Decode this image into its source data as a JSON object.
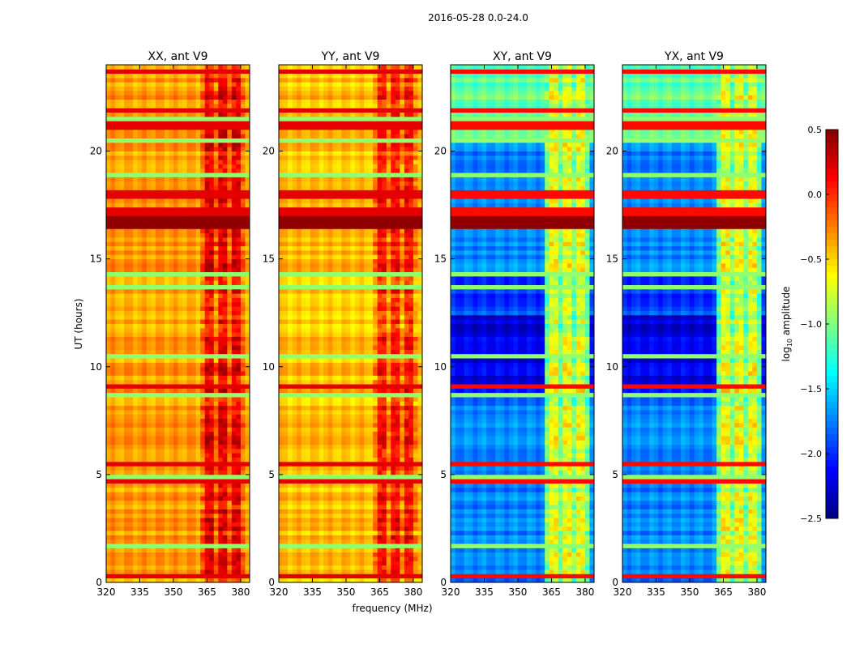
{
  "chart_data": {
    "type": "heatmap",
    "title": "2016-05-28 0.0-24.0",
    "xlabel": "frequency (MHz)",
    "ylabel": "UT (hours)",
    "xlim": [
      320,
      384
    ],
    "ylim": [
      0,
      24
    ],
    "xticks": [
      "320",
      "335",
      "350",
      "365",
      "380"
    ],
    "yticks": [
      "0",
      "5",
      "10",
      "15",
      "20"
    ],
    "panels": [
      {
        "title": "XX, ant V9",
        "base_log_amp": -0.35,
        "band_log_amp": 0.15
      },
      {
        "title": "YY, ant V9",
        "base_log_amp": -0.45,
        "band_log_amp": 0.05
      },
      {
        "title": "XY, ant V9",
        "base_log_amp": -1.75,
        "band_log_amp": -0.7
      },
      {
        "title": "YX, ant V9",
        "base_log_amp": -1.75,
        "band_log_amp": -0.7
      }
    ],
    "rfi_band_MHz": [
      362,
      381
    ],
    "bright_rows_hours": [
      16.5,
      16.9
    ],
    "colorbar": {
      "label": "log10 amplitude",
      "label_main": "log",
      "label_sub": "10",
      "label_rest": " amplitude",
      "range": [
        -2.5,
        0.5
      ],
      "ticks": [
        "0.5",
        "0.0",
        "−0.5",
        "−1.0",
        "−1.5",
        "−2.0",
        "−2.5"
      ],
      "colormap": "jet"
    }
  }
}
